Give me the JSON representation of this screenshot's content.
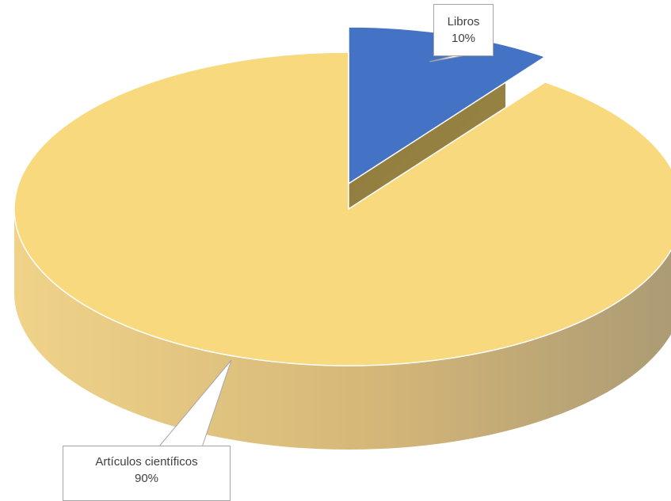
{
  "chart_data": {
    "type": "pie",
    "style": "3d",
    "title": "",
    "slices": [
      {
        "label": "Libros",
        "value": 10,
        "value_label": "10%",
        "color": "#4472c4"
      },
      {
        "label": "Artículos científicos",
        "value": 90,
        "value_label": "90%",
        "color": "#f9d97e"
      }
    ],
    "legend": "none",
    "data_labels": "callouts"
  }
}
